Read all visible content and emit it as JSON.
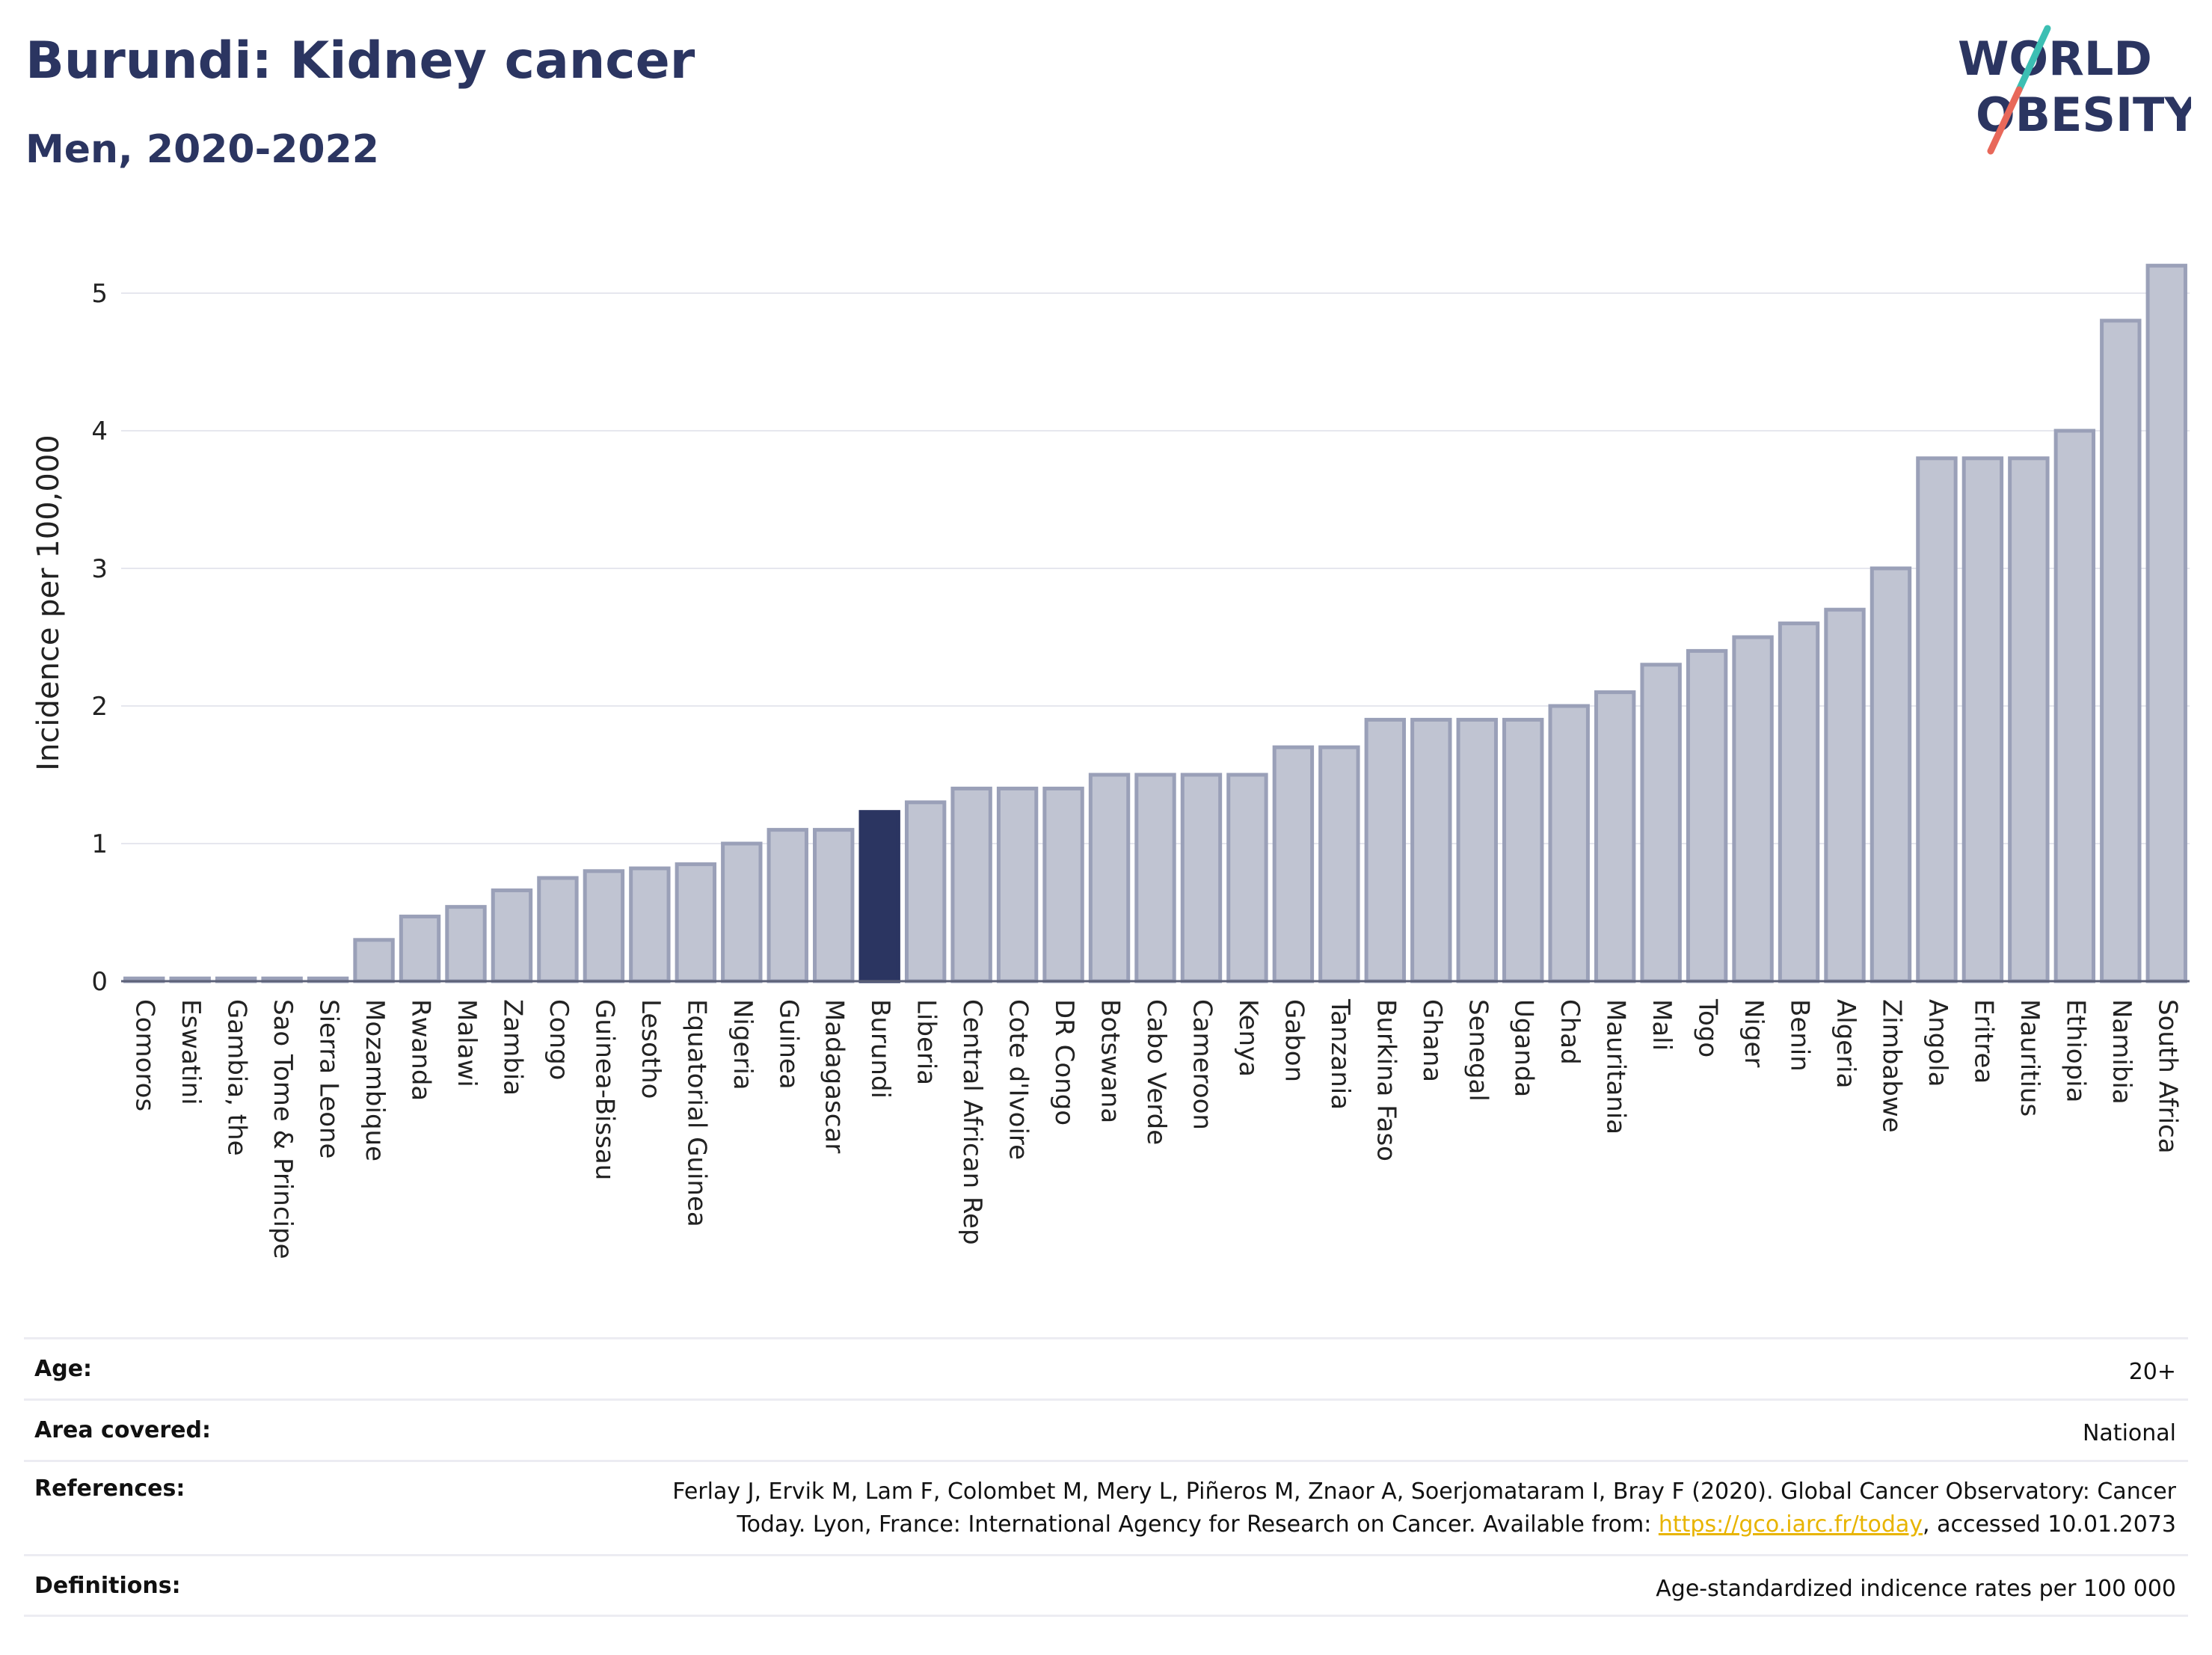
{
  "header": {
    "title": "Burundi: Kidney cancer",
    "subtitle": "Men, 2020-2022"
  },
  "logo": {
    "line1": "WORLD",
    "line2": "OBESITY",
    "colors": {
      "text": "#2b3561",
      "slash_top": "#3cbfb3",
      "slash_bottom": "#e8685a"
    }
  },
  "chart_data": {
    "type": "bar",
    "title": "Burundi: Kidney cancer",
    "subtitle": "Men, 2020-2022",
    "ylabel": "Incidence per 100,000",
    "xlabel": "",
    "ylim": [
      0,
      5.5
    ],
    "yticks": [
      0,
      1,
      2,
      3,
      4,
      5
    ],
    "grid": true,
    "highlight": "Burundi",
    "colors": {
      "bar": "#c0c4d2",
      "bar_border": "#9aa0b8",
      "highlight": "#2b3561",
      "grid": "#e6e7ee",
      "axis": "#5c6178"
    },
    "categories": [
      "Comoros",
      "Eswatini",
      "Gambia, the",
      "Sao Tome & Principe",
      "Sierra Leone",
      "Mozambique",
      "Rwanda",
      "Malawi",
      "Zambia",
      "Congo",
      "Guinea-Bissau",
      "Lesotho",
      "Equatorial Guinea",
      "Nigeria",
      "Guinea",
      "Madagascar",
      "Burundi",
      "Liberia",
      "Central African Rep",
      "Cote d'Ivoire",
      "DR Congo",
      "Botswana",
      "Cabo Verde",
      "Cameroon",
      "Kenya",
      "Gabon",
      "Tanzania",
      "Burkina Faso",
      "Ghana",
      "Senegal",
      "Uganda",
      "Chad",
      "Mauritania",
      "Mali",
      "Togo",
      "Niger",
      "Benin",
      "Algeria",
      "Zimbabwe",
      "Angola",
      "Eritrea",
      "Mauritius",
      "Ethiopia",
      "Namibia",
      "South Africa"
    ],
    "values": [
      0.02,
      0.02,
      0.02,
      0.02,
      0.02,
      0.3,
      0.47,
      0.54,
      0.66,
      0.75,
      0.8,
      0.82,
      0.85,
      1.0,
      1.1,
      1.1,
      1.23,
      1.3,
      1.4,
      1.4,
      1.4,
      1.5,
      1.5,
      1.5,
      1.5,
      1.7,
      1.7,
      1.9,
      1.9,
      1.9,
      1.9,
      2.0,
      2.1,
      2.3,
      2.4,
      2.5,
      2.6,
      2.7,
      3.0,
      3.8,
      3.8,
      3.8,
      4.0,
      4.8,
      5.2
    ]
  },
  "meta": {
    "age_label": "Age:",
    "age_value": "20+",
    "area_label": "Area covered:",
    "area_value": "National",
    "references_label": "References:",
    "references_line1": "Ferlay J, Ervik M, Lam F, Colombet M, Mery L, Piñeros M, Znaor A, Soerjomataram I, Bray F (2020). Global Cancer Observatory: Cancer",
    "references_line2_pre": "Today. Lyon, France: International Agency for Research on Cancer. Available from: ",
    "references_link": "https://gco.iarc.fr/today",
    "references_line2_post": ", accessed 10.01.2073",
    "definitions_label": "Definitions:",
    "definitions_value": "Age-standardized indicence rates per 100 000"
  }
}
